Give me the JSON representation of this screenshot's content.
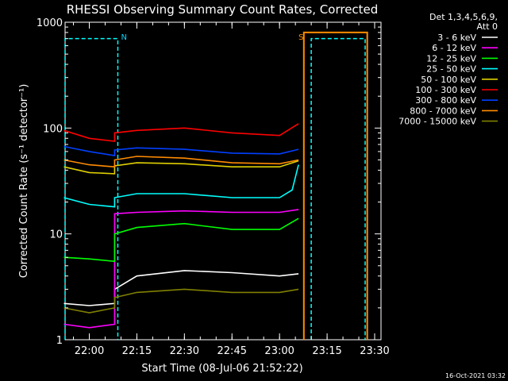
{
  "chart_data": {
    "type": "line",
    "title": "RHESSI Observing Summary Count Rates, Corrected",
    "xlabel": "Start Time (08-Jul-06 21:52:22)",
    "ylabel": "Corrected Count Rate (s⁻¹ detector⁻¹)",
    "yscale": "log",
    "ylim": [
      1,
      1000
    ],
    "xlim": [
      "21:52:22",
      "23:32:00"
    ],
    "x_ticks": [
      "22:00",
      "22:15",
      "22:30",
      "22:45",
      "23:00",
      "23:15",
      "23:30"
    ],
    "y_ticks": [
      "1",
      "10",
      "100",
      "1000"
    ],
    "grid": false,
    "legend_position": "top-right",
    "legend_header": [
      "Det 1,3,4,5,6,9,",
      "Att 0"
    ],
    "annotations": [
      {
        "text": "N",
        "x": "22:09:30",
        "color": "#00d8ff"
      },
      {
        "text": "S",
        "x": "23:05:30",
        "color": "#ff8c00"
      }
    ],
    "night_flags": {
      "color": "#00ffff",
      "level": 700,
      "intervals": [
        [
          "21:52:22",
          "22:09:00"
        ],
        [
          "23:10:00",
          "23:27:00"
        ]
      ]
    },
    "saa_flags": {
      "color": "#ff8c00",
      "level": 800,
      "interval": [
        "23:07:40",
        "23:27:40"
      ]
    },
    "series": [
      {
        "name": "3 - 6 keV",
        "color": "#ffffff",
        "x": [
          "21:52",
          "22:00",
          "22:08",
          "22:08",
          "22:15",
          "22:30",
          "22:45",
          "23:00",
          "23:06"
        ],
        "y": [
          2.2,
          2.1,
          2.2,
          3.0,
          4.0,
          4.5,
          4.3,
          4.0,
          4.2
        ]
      },
      {
        "name": "6 - 12 keV",
        "color": "#ff00ff",
        "x": [
          "21:52",
          "22:00",
          "22:08",
          "22:08",
          "22:15",
          "22:30",
          "22:45",
          "23:00",
          "23:06"
        ],
        "y": [
          1.4,
          1.3,
          1.4,
          15.5,
          16,
          16.5,
          16,
          16,
          17
        ]
      },
      {
        "name": "12 - 25 keV",
        "color": "#00ff00",
        "x": [
          "21:52",
          "22:00",
          "22:08",
          "22:08",
          "22:15",
          "22:30",
          "22:45",
          "23:00",
          "23:06"
        ],
        "y": [
          6,
          5.8,
          5.5,
          10,
          11.5,
          12.5,
          11,
          11,
          14
        ]
      },
      {
        "name": "25 - 50 keV",
        "color": "#00ffff",
        "x": [
          "21:52",
          "22:00",
          "22:08",
          "22:08",
          "22:15",
          "22:30",
          "22:45",
          "23:00",
          "23:04",
          "23:06"
        ],
        "y": [
          22,
          19,
          18,
          22,
          24,
          24,
          22,
          22,
          26,
          45
        ]
      },
      {
        "name": "50 - 100 keV",
        "color": "#e0d000",
        "x": [
          "21:52",
          "22:00",
          "22:08",
          "22:08",
          "22:15",
          "22:30",
          "22:45",
          "23:00",
          "23:06"
        ],
        "y": [
          43,
          38,
          37,
          44,
          47,
          46,
          43,
          43,
          49
        ]
      },
      {
        "name": "100 - 300 keV",
        "color": "#ff0000",
        "x": [
          "21:52",
          "22:00",
          "22:08",
          "22:08",
          "22:15",
          "22:30",
          "22:45",
          "23:00",
          "23:06"
        ],
        "y": [
          95,
          80,
          75,
          90,
          95,
          100,
          90,
          85,
          110
        ]
      },
      {
        "name": "300 - 800 keV",
        "color": "#0040ff",
        "x": [
          "21:52",
          "22:00",
          "22:08",
          "22:08",
          "22:15",
          "22:30",
          "22:45",
          "23:00",
          "23:06"
        ],
        "y": [
          67,
          60,
          55,
          62,
          65,
          63,
          58,
          57,
          63
        ]
      },
      {
        "name": "800 - 7000 keV",
        "color": "#ff8c00",
        "x": [
          "21:52",
          "22:00",
          "22:08",
          "22:08",
          "22:15",
          "22:30",
          "22:45",
          "23:00",
          "23:06"
        ],
        "y": [
          50,
          45,
          43,
          50,
          54,
          52,
          47,
          46,
          50
        ]
      },
      {
        "name": "7000 - 15000 keV",
        "color": "#808000",
        "x": [
          "21:52",
          "22:00",
          "22:08",
          "22:08",
          "22:15",
          "22:30",
          "22:45",
          "23:00",
          "23:06"
        ],
        "y": [
          2.0,
          1.8,
          2.0,
          2.5,
          2.8,
          3.0,
          2.8,
          2.8,
          3.0
        ]
      }
    ]
  },
  "footer": {
    "timestamp": "16-Oct-2021 03:32"
  }
}
